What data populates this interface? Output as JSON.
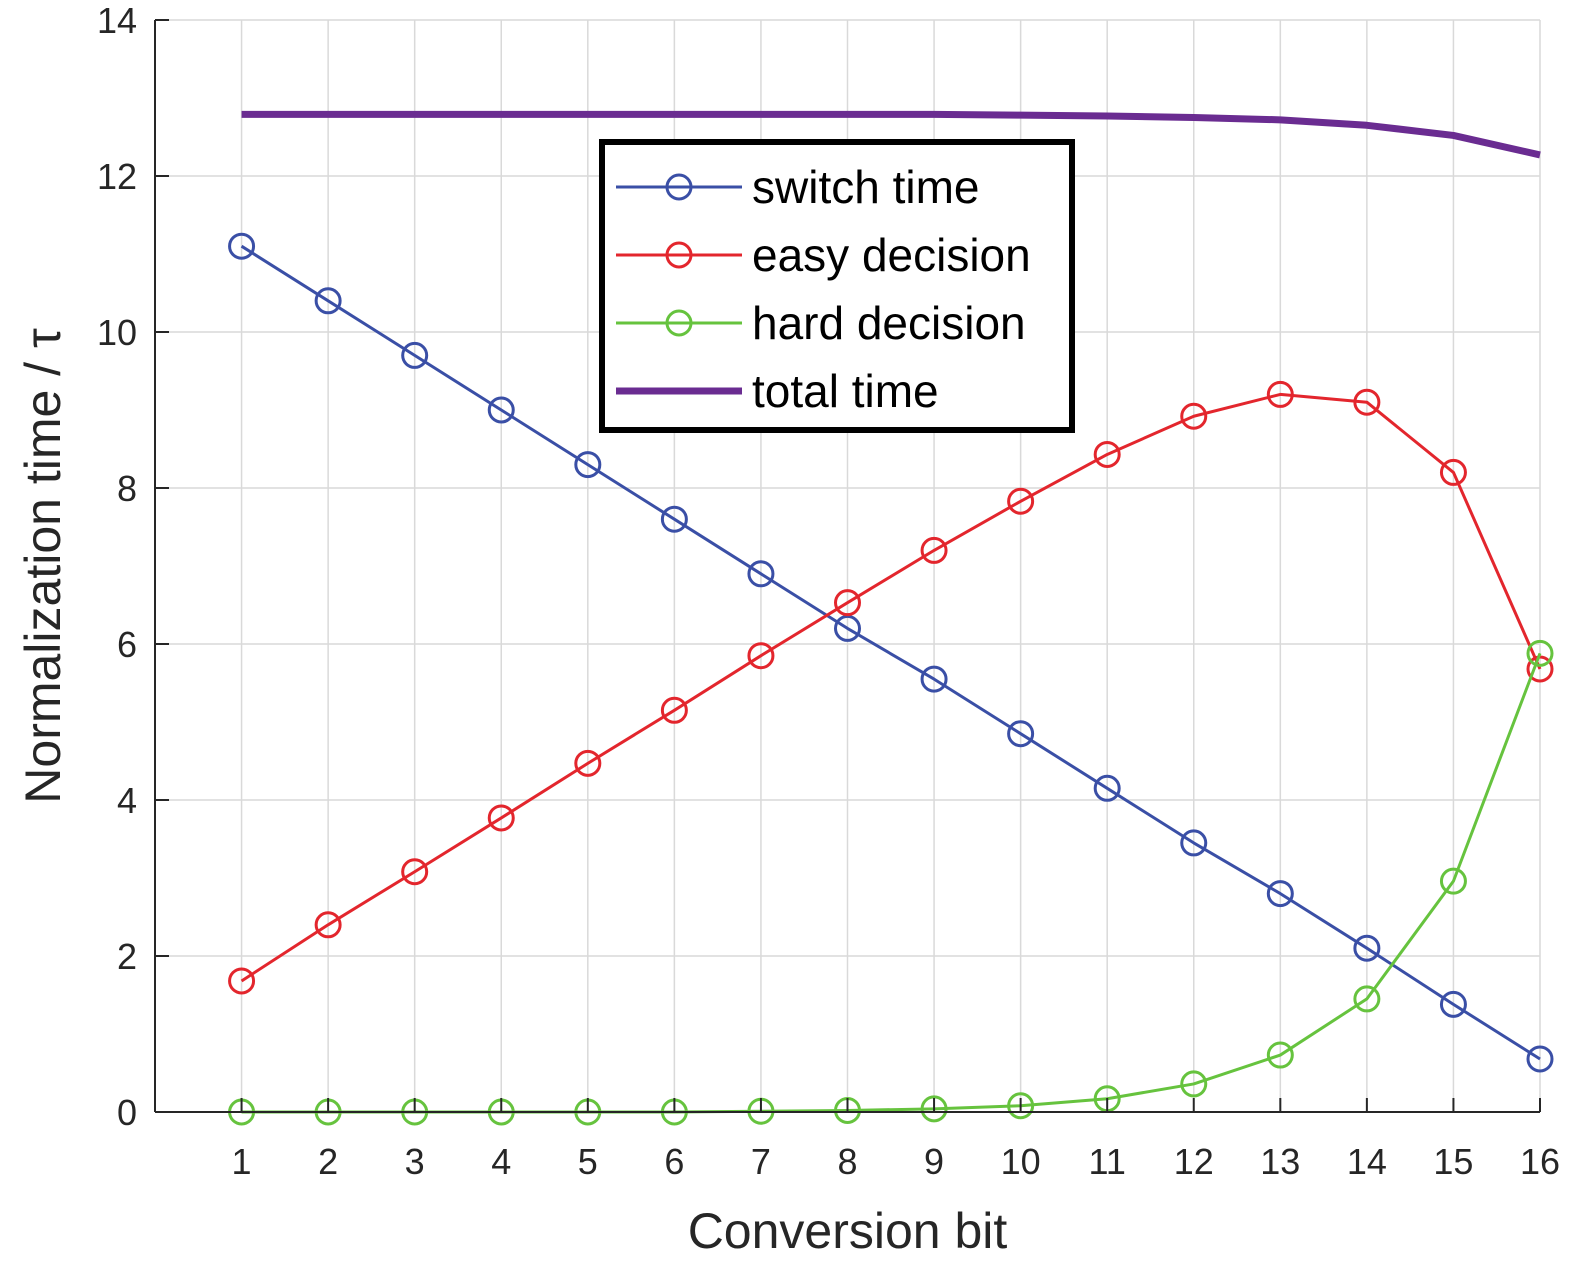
{
  "chart_data": {
    "type": "line",
    "xlabel": "Conversion bit",
    "ylabel": "Normalization time / τ",
    "xlim": [
      0.0,
      16.0
    ],
    "ylim": [
      0,
      14
    ],
    "x": [
      1,
      2,
      3,
      4,
      5,
      6,
      7,
      8,
      9,
      10,
      11,
      12,
      13,
      14,
      15,
      16
    ],
    "xticks": [
      1,
      2,
      3,
      4,
      5,
      6,
      7,
      8,
      9,
      10,
      11,
      12,
      13,
      14,
      15,
      16
    ],
    "yticks": [
      0,
      2,
      4,
      6,
      8,
      10,
      12,
      14
    ],
    "grid": true,
    "legend_position": "top-center",
    "series": [
      {
        "name": "switch time",
        "color": "#3a4fa6",
        "marker": "circle",
        "values": [
          11.1,
          10.4,
          9.7,
          9.0,
          8.3,
          7.6,
          6.9,
          6.2,
          5.55,
          4.85,
          4.15,
          3.45,
          2.8,
          2.1,
          1.38,
          0.68
        ]
      },
      {
        "name": "easy decision",
        "color": "#e3262d",
        "marker": "circle",
        "values": [
          1.68,
          2.4,
          3.08,
          3.77,
          4.47,
          5.15,
          5.85,
          6.53,
          7.2,
          7.83,
          8.43,
          8.92,
          9.2,
          9.1,
          8.2,
          5.68
        ]
      },
      {
        "name": "hard decision",
        "color": "#66c33e",
        "marker": "circle",
        "values": [
          0.0,
          0.0,
          0.0,
          0.0,
          0.0,
          0.0,
          0.01,
          0.02,
          0.04,
          0.08,
          0.17,
          0.36,
          0.73,
          1.45,
          2.96,
          5.88
        ]
      },
      {
        "name": "total time",
        "color": "#6a2c91",
        "marker": "none",
        "values": [
          12.79,
          12.79,
          12.79,
          12.79,
          12.79,
          12.79,
          12.79,
          12.79,
          12.79,
          12.78,
          12.77,
          12.75,
          12.72,
          12.65,
          12.52,
          12.27
        ]
      }
    ]
  }
}
